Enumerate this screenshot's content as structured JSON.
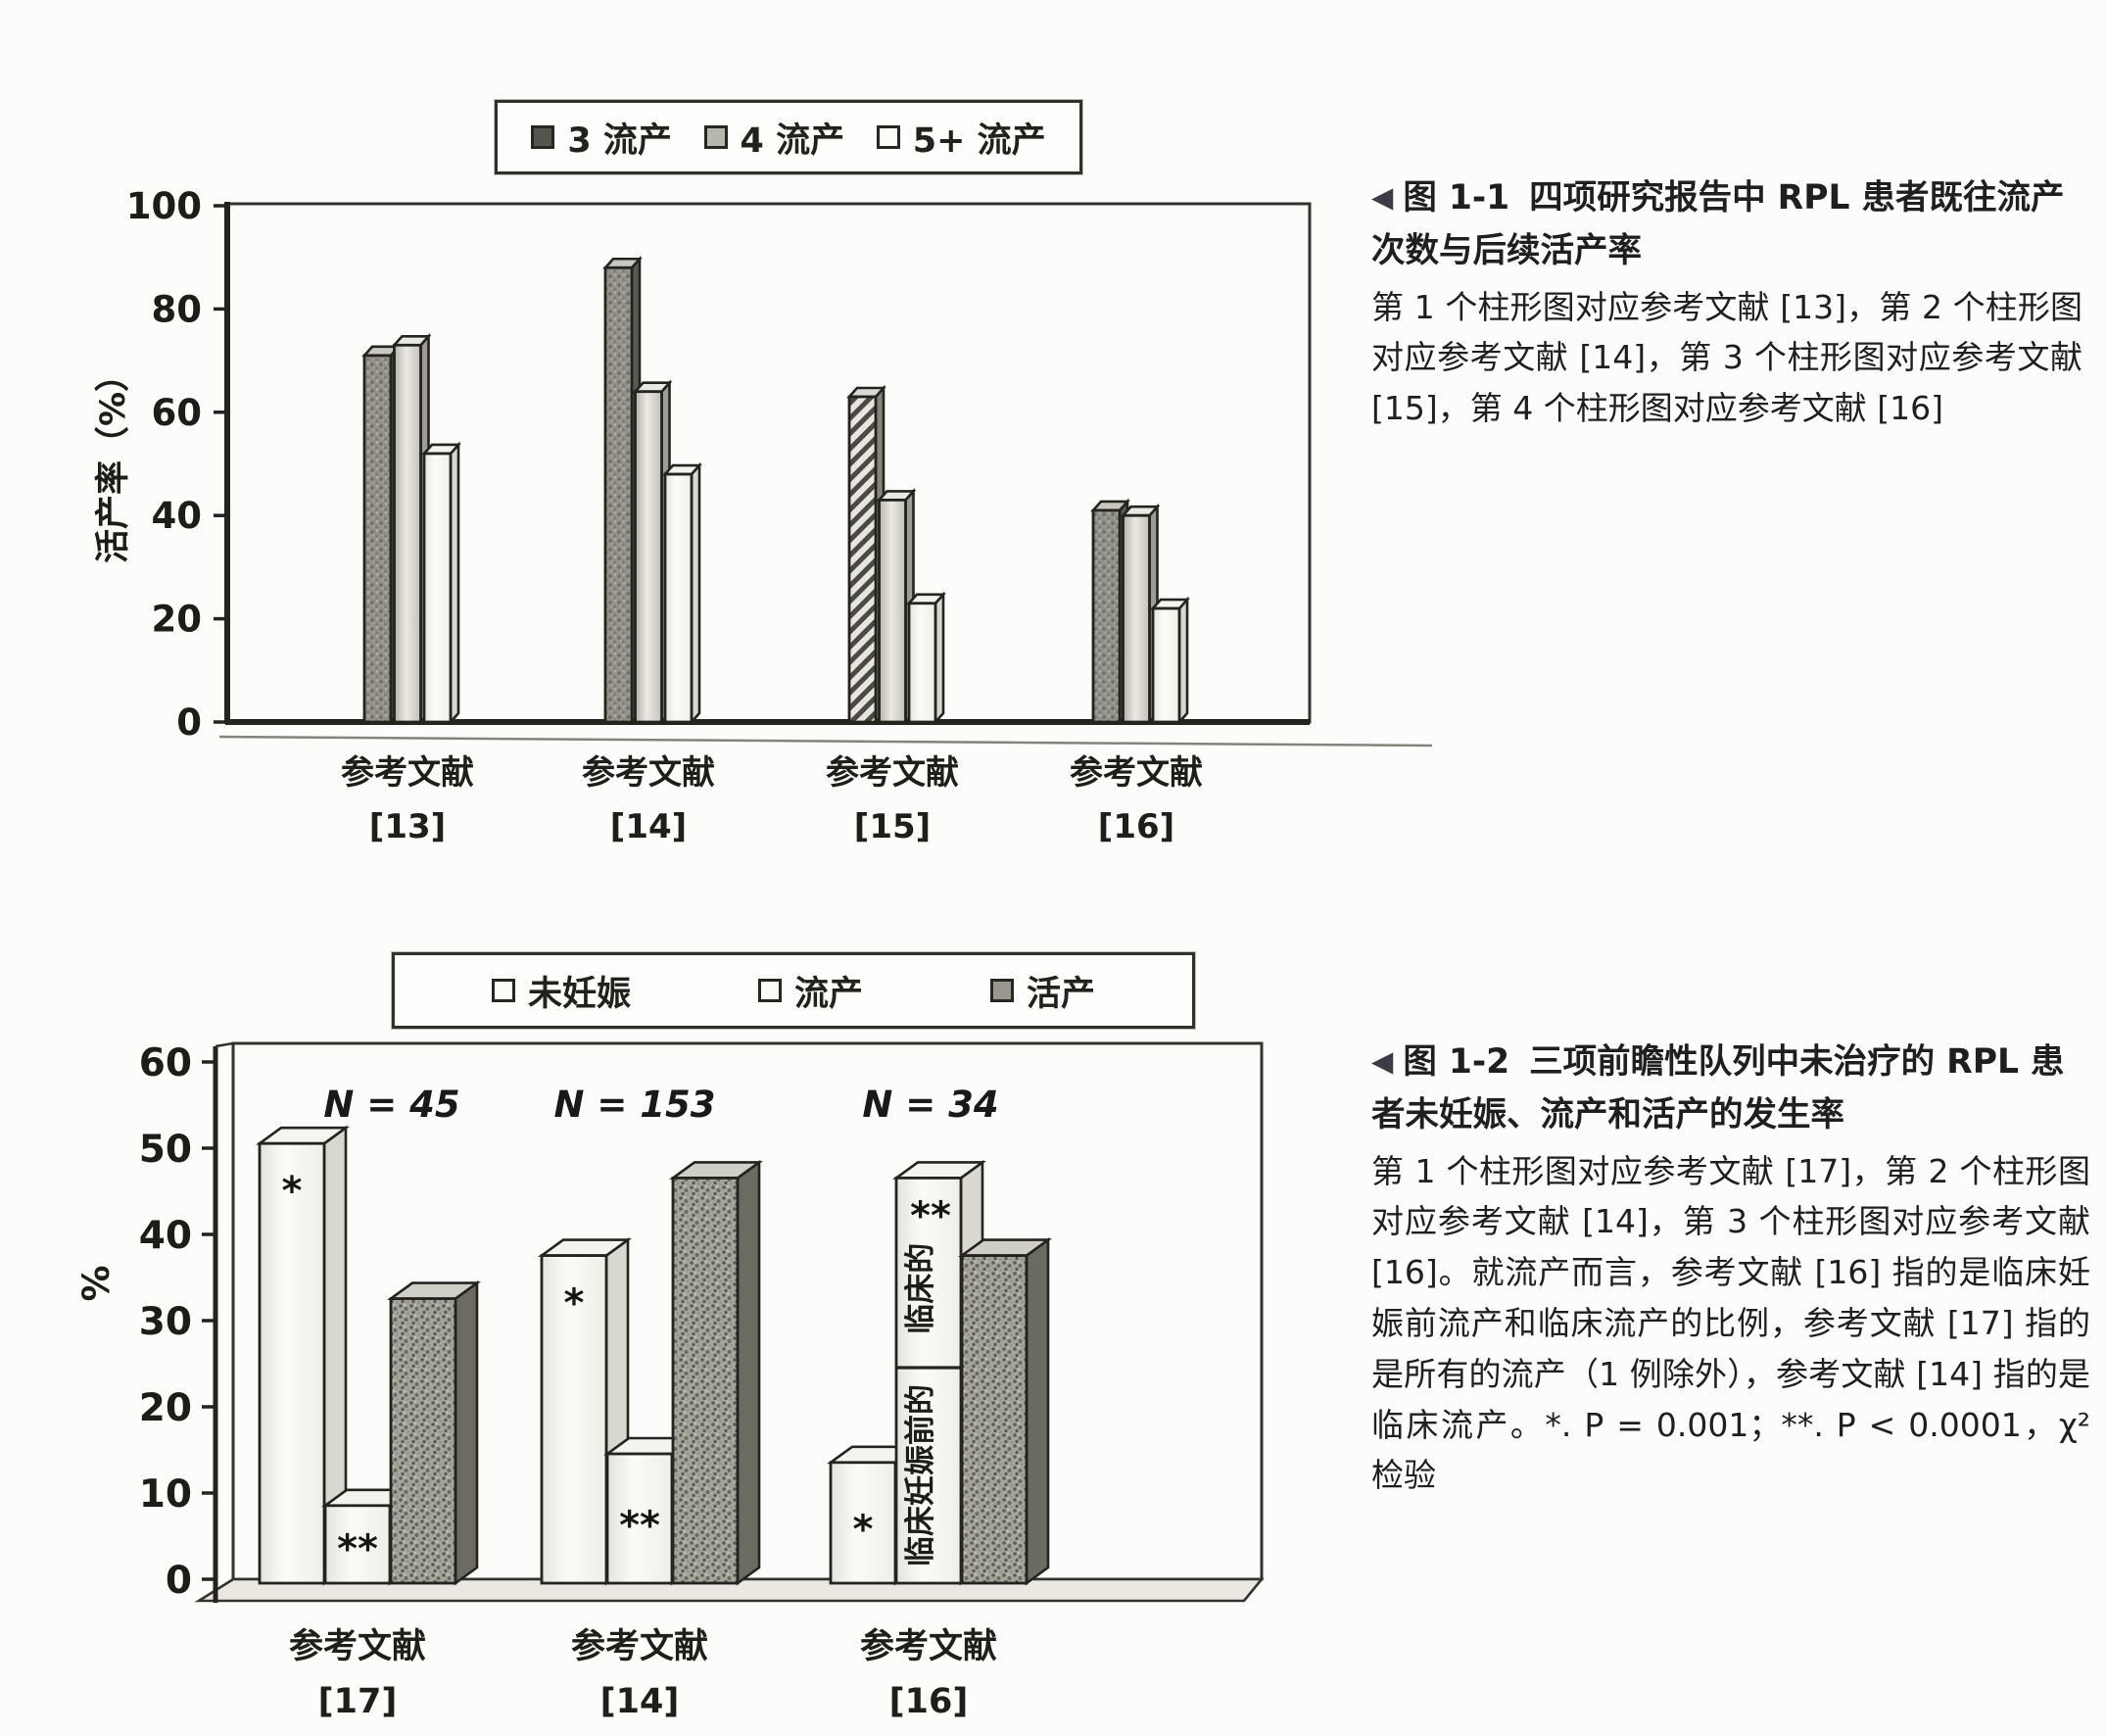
{
  "page": {
    "background": "#fcfcfa",
    "ink": "#23231f"
  },
  "figure1": {
    "legend": {
      "items": [
        {
          "label": "3 流产",
          "swatch": "dark"
        },
        {
          "label": "4 流产",
          "swatch": "mid"
        },
        {
          "label": "5+ 流产",
          "swatch": "white"
        }
      ]
    },
    "caption": {
      "marker": "◀",
      "fig_label": "图 1-1",
      "title": "四项研究报告中 RPL 患者既往流产次数与后续活产率",
      "body": "第 1 个柱形图对应参考文献 [13]，第 2 个柱形图对应参考文献 [14]，第 3 个柱形图对应参考文献 [15]，第 4 个柱形图对应参考文献 [16]"
    }
  },
  "figure2": {
    "legend": {
      "items": [
        {
          "label": "未妊娠",
          "swatch": "white"
        },
        {
          "label": "流产",
          "swatch": "white"
        },
        {
          "label": "活产",
          "swatch": "speckle"
        }
      ]
    },
    "caption": {
      "marker": "◀",
      "fig_label": "图 1-2",
      "title": "三项前瞻性队列中未治疗的 RPL 患者未妊娠、流产和活产的发生率",
      "body": "第 1 个柱形图对应参考文献 [17]，第 2 个柱形图对应参考文献 [14]，第 3 个柱形图对应参考文献 [16]。就流产而言，参考文献 [16] 指的是临床妊娠前流产和临床流产的比例，参考文献 [17] 指的是所有的流产（1 例除外），参考文献 [14] 指的是临床流产。*. P = 0.001；**. P < 0.0001，χ² 检验"
    }
  },
  "chart_data": [
    {
      "id": "fig1",
      "type": "bar",
      "title": "",
      "xlabel": "",
      "ylabel": "活产率（%）",
      "ylim": [
        0,
        100
      ],
      "yticks": [
        0,
        20,
        40,
        60,
        80,
        100
      ],
      "grid": false,
      "legend_position": "top",
      "categories": [
        [
          "参考文献",
          "[13]"
        ],
        [
          "参考文献",
          "[14]"
        ],
        [
          "参考文献",
          "[15]"
        ],
        [
          "参考文献",
          "[16]"
        ]
      ],
      "series": [
        {
          "name": "3 流产",
          "values": [
            71,
            88,
            63,
            41
          ],
          "textures": [
            "mottled",
            "mottled",
            "hatch",
            "mottled"
          ]
        },
        {
          "name": "4 流产",
          "values": [
            73,
            64,
            43,
            40
          ],
          "textures": [
            "light",
            "light",
            "light",
            "light"
          ]
        },
        {
          "name": "5+ 流产",
          "values": [
            52,
            48,
            23,
            22
          ],
          "textures": [
            "white",
            "white",
            "white",
            "white"
          ]
        }
      ]
    },
    {
      "id": "fig2",
      "type": "bar",
      "style": "3d",
      "title": "",
      "xlabel": "",
      "ylabel": "%",
      "ylim": [
        0,
        60
      ],
      "yticks": [
        0,
        10,
        20,
        30,
        40,
        50,
        60
      ],
      "grid": false,
      "legend_position": "top",
      "categories": [
        [
          "参考文献",
          "[17]"
        ],
        [
          "参考文献",
          "[14]"
        ],
        [
          "参考文献",
          "[16]"
        ]
      ],
      "group_labels": [
        "N = 45",
        "N = 153",
        "N = 34"
      ],
      "series": [
        {
          "name": "未妊娠",
          "values": [
            51,
            38,
            14
          ],
          "textures": [
            "white",
            "white",
            "white"
          ],
          "markers": [
            "*",
            "*",
            "*"
          ]
        },
        {
          "name": "流产",
          "values": [
            9,
            15,
            47
          ],
          "textures": [
            "white",
            "white",
            "white"
          ],
          "markers": [
            "**",
            "**",
            ""
          ],
          "stacks": [
            null,
            null,
            {
              "segments": [
                {
                  "label": "临床妊娠前的",
                  "value": 25
                },
                {
                  "label": "临床的",
                  "value": 22,
                  "marker": "**"
                }
              ]
            }
          ]
        },
        {
          "name": "活产",
          "values": [
            33,
            47,
            38
          ],
          "textures": [
            "speckle",
            "speckle",
            "speckle"
          ],
          "markers": [
            "",
            "",
            ""
          ]
        }
      ]
    }
  ]
}
